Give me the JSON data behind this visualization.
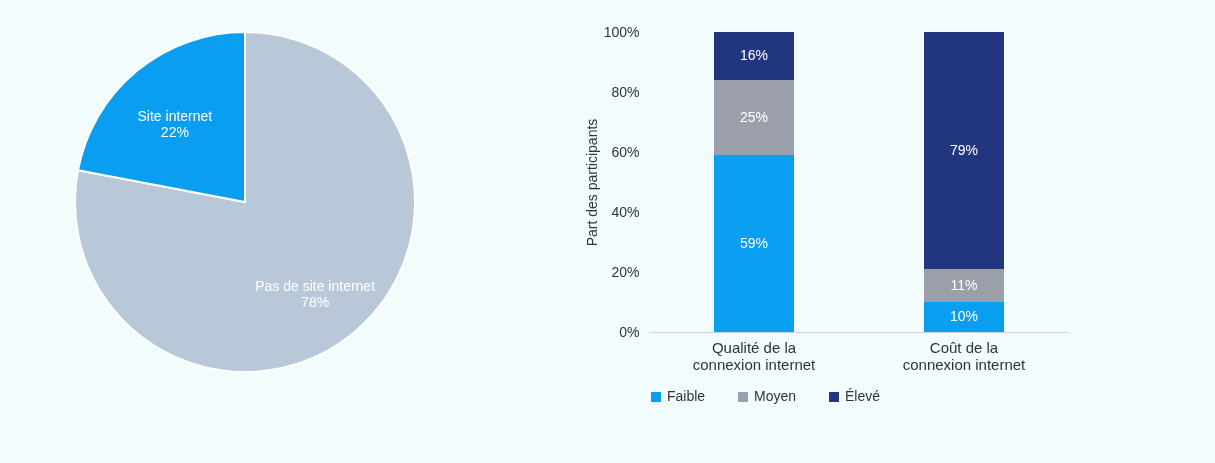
{
  "chart_data": [
    {
      "type": "pie",
      "categories": [
        "Pas de site internet",
        "Site internet"
      ],
      "values": [
        78,
        22
      ],
      "colors": [
        "#b9c8d8",
        "#0a9ef0"
      ],
      "value_labels": [
        "78%",
        "22%"
      ],
      "legend": false
    },
    {
      "type": "bar",
      "stacked": true,
      "categories": [
        "Qualité de la connexion internet",
        "Coût de la connexion internet"
      ],
      "ylabel": "Part des participants",
      "ylim": [
        0,
        100
      ],
      "yticks": [
        {
          "value": 0,
          "label": "0%"
        },
        {
          "value": 20,
          "label": "20%"
        },
        {
          "value": 40,
          "label": "40%"
        },
        {
          "value": 60,
          "label": "60%"
        },
        {
          "value": 80,
          "label": "80%"
        },
        {
          "value": 100,
          "label": "100%"
        }
      ],
      "grid": false,
      "legend": "bottom",
      "series": [
        {
          "name": "Faible",
          "color": "#0a9ef0",
          "values": [
            59,
            10
          ],
          "value_labels": [
            "59%",
            "10%"
          ]
        },
        {
          "name": "Moyen",
          "color": "#9a9fa9",
          "values": [
            25,
            11
          ],
          "value_labels": [
            "25%",
            "11%"
          ]
        },
        {
          "name": "Élevé",
          "color": "#22357f",
          "values": [
            16,
            79
          ],
          "value_labels": [
            "16%",
            "79%"
          ]
        }
      ]
    }
  ]
}
